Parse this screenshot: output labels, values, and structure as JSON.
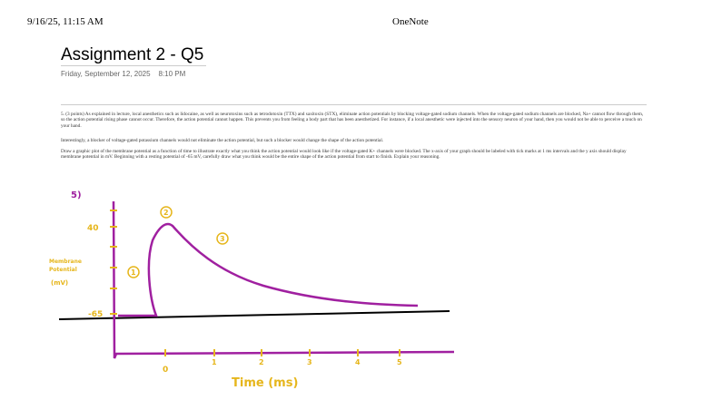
{
  "header": {
    "timestamp": "9/16/25, 11:15 AM",
    "app": "OneNote"
  },
  "page": {
    "title": "Assignment 2 - Q5",
    "date": "Friday, September 12, 2025",
    "time": "8:10 PM"
  },
  "paragraphs": [
    "5. (3 points) As explained in lecture, local anesthetics such as lidocaine, as well as neurotoxins such as tetrodotoxin (TTX) and saxitoxin (STX), eliminate action potentials by blocking voltage-gated sodium channels. When the voltage-gated sodium channels are blocked, Na+ cannot flow through them, so the action potential rising phase cannot occur. Therefore, the action potential cannot happen. This prevents you from feeling a body part that has been anesthetized. For instance, if a local anesthetic were injected into the sensory neuron of your hand, then you would not be able to perceive a touch on your hand.",
    "Interestingly, a blocker of voltage-gated potassium channels would not eliminate the action potential, but such a blocker would change the shape of the action potential.",
    "Draw a graphic plot of the membrane potential as a function of time to illustrate exactly what you think the action potential would look like if the voltage-gated K+ channels were blocked. The x-axis of your graph should be labeled with tick marks at 1 ms intervals and the y axis should display membrane potential in mV. Beginning with a resting potential of -65 mV, carefully draw what you think would be the entire shape of the action potential from start to finish. Explain your reasoning."
  ],
  "drawing": {
    "question_label": "5)",
    "y_labels": [
      "40",
      "-65"
    ],
    "y_title": [
      "Membrane",
      "Potential",
      "(mV)"
    ],
    "x_labels": [
      "0",
      "1",
      "2",
      "3",
      "4",
      "5"
    ],
    "x_title": "Time (ms)",
    "phase_markers": [
      "1",
      "2",
      "3"
    ]
  }
}
